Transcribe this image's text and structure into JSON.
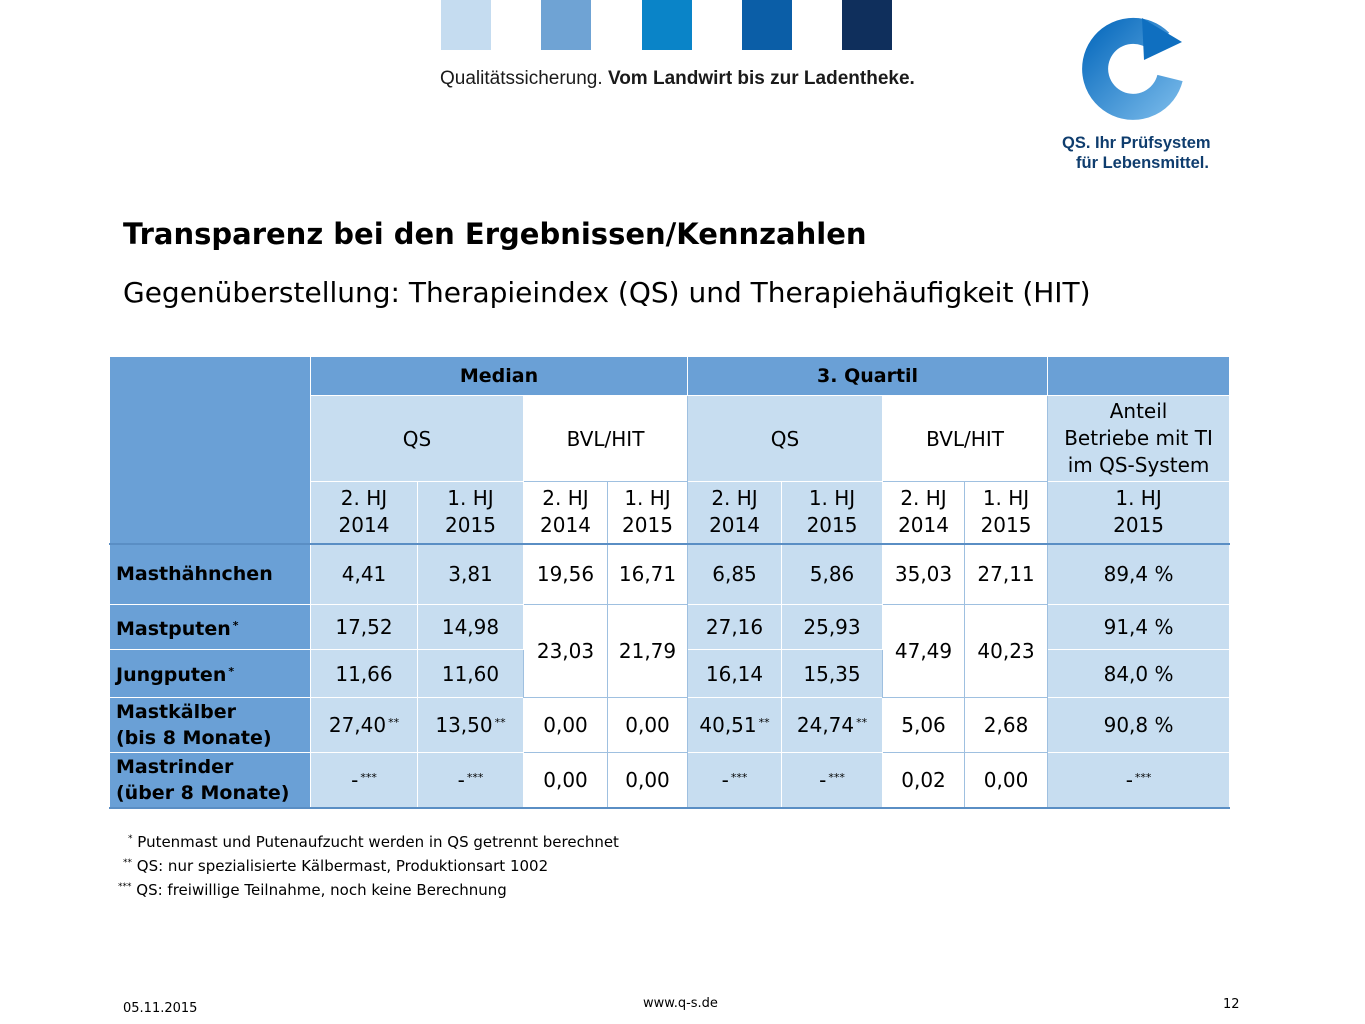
{
  "brand": {
    "squares": [
      "#c5dcf0",
      "#6fa3d4",
      "#0a84c8",
      "#0b5ea7",
      "#0f2f5c"
    ],
    "tagline_regular": "Qualitätssicherung.",
    "tagline_bold": "Vom Landwirt bis zur Ladentheke.",
    "logo_line1": "QS. Ihr Prüfsystem",
    "logo_line2": "für Lebensmittel.",
    "logo_icon": "circular-arrow-icon",
    "accent": "#0b5ea7"
  },
  "title": "Transparenz bei den Ergebnissen/Kennzahlen",
  "subtitle": "Gegenüberstellung: Therapieindex (QS) und Therapiehäufigkeit (HIT)",
  "table": {
    "group_median": "Median",
    "group_quartil": "3. Quartil",
    "sub_qs": "QS",
    "sub_bvl": "BVL/HIT",
    "anteil_line1": "Anteil",
    "anteil_line2": "Betriebe mit TI",
    "anteil_line3": "im QS-System",
    "period_2hj_a": "2. HJ",
    "period_2hj_b": "2014",
    "period_1hj_a": "1. HJ",
    "period_1hj_b": "2015",
    "rows": [
      {
        "label": "Masthähnchen",
        "mark": "",
        "cells": [
          "4,41",
          "3,81",
          "19,56",
          "16,71",
          "6,85",
          "5,86",
          "35,03",
          "27,11",
          "89,4 %"
        ]
      },
      {
        "label": "Mastputen",
        "mark": "*",
        "cells": [
          "17,52",
          "14,98",
          "23,03",
          "21,79",
          "27,16",
          "25,93",
          "47,49",
          "40,23",
          "91,4 %"
        ]
      },
      {
        "label": "Jungputen",
        "mark": "*",
        "cells": [
          "11,66",
          "11,60",
          "",
          "",
          "16,14",
          "15,35",
          "",
          "",
          "84,0 %"
        ]
      },
      {
        "label_line1": "Mastkälber",
        "label_line2": "(bis 8 Monate)",
        "cells": [
          "27,40",
          "13,50",
          "0,00",
          "0,00",
          "40,51",
          "24,74",
          "5,06",
          "2,68",
          "90,8 %"
        ],
        "mark": "**"
      },
      {
        "label_line1": "Mastrinder",
        "label_line2": "(über 8 Monate)",
        "cells": [
          "-",
          "-",
          "0,00",
          "0,00",
          "-",
          "-",
          "0,02",
          "0,00",
          "-"
        ],
        "mark": "***"
      }
    ]
  },
  "notes": {
    "n1_mark": "*",
    "n1": "Putenmast und Putenaufzucht werden in QS getrennt berechnet",
    "n2_mark": "**",
    "n2": "QS: nur spezialisierte Kälbermast, Produktionsart 1002",
    "n3_mark": "***",
    "n3": "QS: freiwillige Teilnahme, noch keine Berechnung"
  },
  "footer": {
    "date": "05.11.2015",
    "url": "www.q-s.de",
    "page": "12"
  }
}
